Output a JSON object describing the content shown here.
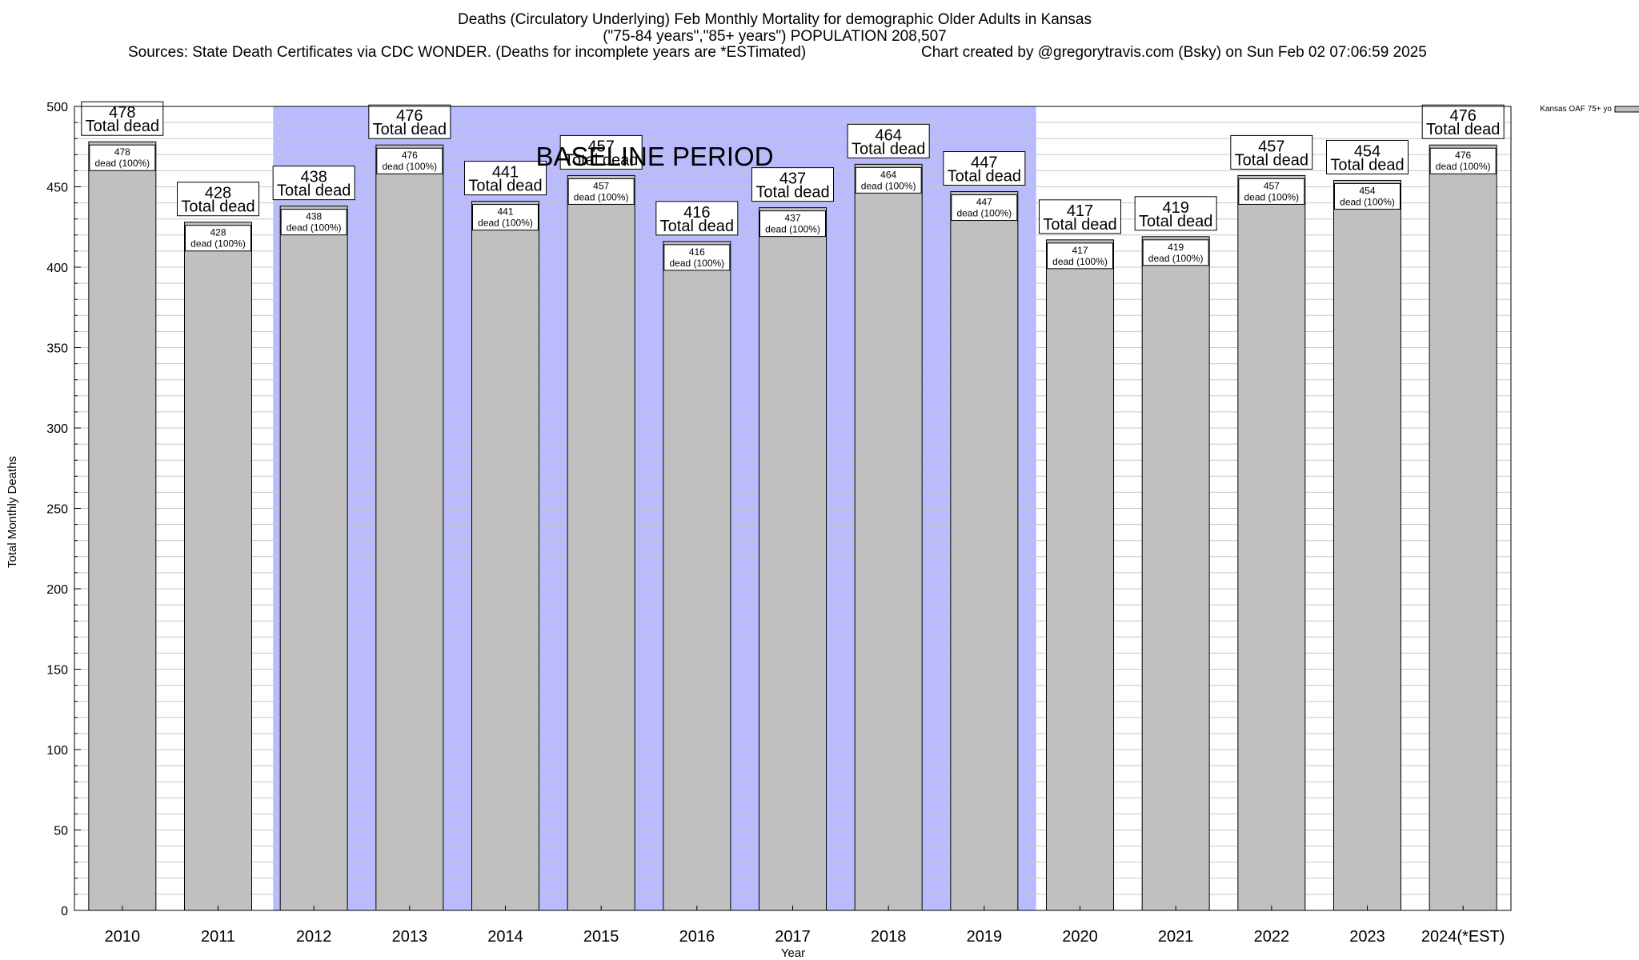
{
  "header": {
    "title_line1": "Deaths (Circulatory Underlying) Feb Monthly Mortality for demographic Older Adults in Kansas",
    "title_line2": "(\"75-84 years\",\"85+ years\") POPULATION 208,507",
    "sources": "Sources: State Death Certificates via CDC WONDER. (Deaths for incomplete years are *ESTimated)",
    "credit": "Chart created by @gregorytravis.com (Bsky) on Sun Feb 02 07:06:59 2025"
  },
  "chart_data": {
    "type": "bar",
    "categories": [
      "2010",
      "2011",
      "2012",
      "2013",
      "2014",
      "2015",
      "2016",
      "2017",
      "2018",
      "2019",
      "2020",
      "2021",
      "2022",
      "2023",
      "2024(*EST)"
    ],
    "series": [
      {
        "name": "Kansas OAF 75+ yo",
        "values": [
          478,
          428,
          438,
          476,
          441,
          457,
          416,
          437,
          464,
          447,
          417,
          419,
          457,
          454,
          476
        ]
      }
    ],
    "xlabel": "Year",
    "ylabel": "Total Monthly Deaths",
    "ylim": [
      0,
      500
    ],
    "yticks": [
      0,
      50,
      100,
      150,
      200,
      250,
      300,
      350,
      400,
      450,
      500
    ],
    "minor_tick_step": 10,
    "grid": true,
    "legend_position": "top-right",
    "top_label_suffix": "Total dead",
    "inner_label_suffix": "dead (100%)",
    "annotation": {
      "text": "BASELINE PERIOD",
      "start": "2012",
      "end": "2019"
    },
    "colors": {
      "bar": "#c0c0c0",
      "baseline": "#babaff",
      "grid": "#c8c8c8"
    }
  }
}
